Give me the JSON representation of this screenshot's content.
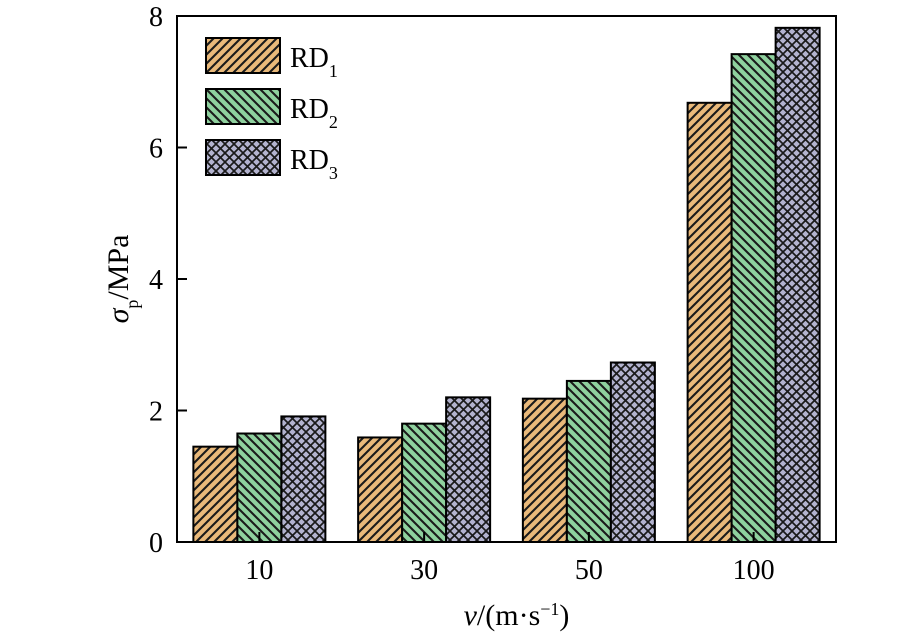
{
  "chart_data": {
    "type": "bar",
    "title": "",
    "xlabel": {
      "var": "v",
      "unit_open": "/(m·s",
      "unit_sup": "−1",
      "unit_close": ")"
    },
    "ylabel": {
      "sym": "σ",
      "sub": "p",
      "unit": "/MPa"
    },
    "categories": [
      "10",
      "30",
      "50",
      "100"
    ],
    "ylim": [
      0,
      8
    ],
    "yticks": [
      0,
      2,
      4,
      6,
      8
    ],
    "grid": false,
    "legend_position": "top-left",
    "series": [
      {
        "name": "RD1",
        "base": "RD",
        "sub": "1",
        "color": "#E9B97A",
        "pattern": "hatch-right",
        "values": [
          1.45,
          1.59,
          2.18,
          6.68
        ]
      },
      {
        "name": "RD2",
        "base": "RD",
        "sub": "2",
        "color": "#8FD19E",
        "pattern": "hatch-left",
        "values": [
          1.65,
          1.8,
          2.45,
          7.42
        ]
      },
      {
        "name": "RD3",
        "base": "RD",
        "sub": "3",
        "color": "#B3B3CF",
        "pattern": "crosshatch",
        "values": [
          1.91,
          2.2,
          2.73,
          7.82
        ]
      }
    ]
  }
}
